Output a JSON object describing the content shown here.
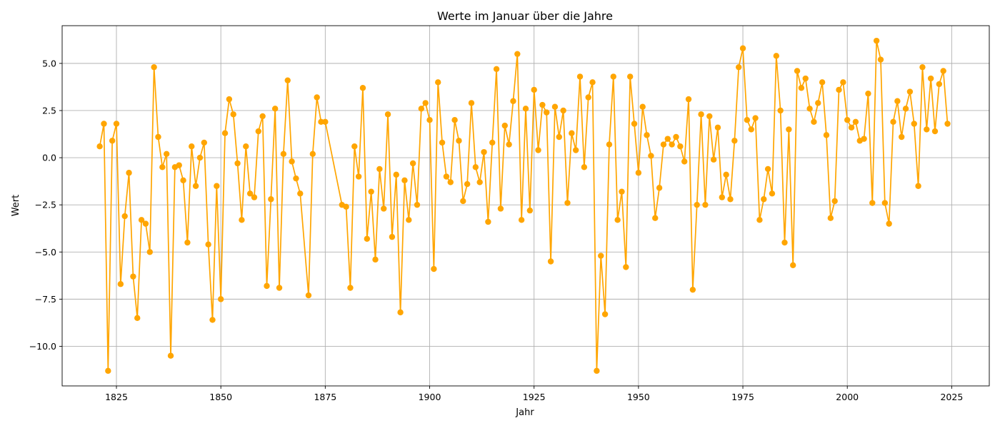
{
  "chart_data": {
    "type": "line",
    "title": "Werte im Januar über die Jahre",
    "xlabel": "Jahr",
    "ylabel": "Wert",
    "xlim": [
      1812,
      2034
    ],
    "ylim": [
      -12.1,
      7.0
    ],
    "xticks": [
      1825,
      1850,
      1875,
      1900,
      1925,
      1950,
      1975,
      2000,
      2025
    ],
    "yticks": [
      -10.0,
      -7.5,
      -5.0,
      -2.5,
      0.0,
      2.5,
      5.0
    ],
    "ytick_labels": [
      "−10.0",
      "−7.5",
      "−5.0",
      "−2.5",
      "0.0",
      "2.5",
      "5.0"
    ],
    "grid": true,
    "color": "#FFA500",
    "series": [
      {
        "x": [
          1821,
          1822,
          1823,
          1824,
          1825,
          1826,
          1827,
          1828,
          1829,
          1830,
          1831,
          1832,
          1833,
          1834,
          1835,
          1836,
          1837,
          1838,
          1839,
          1840,
          1841,
          1842,
          1843,
          1844,
          1845,
          1846,
          1847,
          1848,
          1849,
          1850,
          1851,
          1852,
          1853,
          1854,
          1855,
          1856,
          1857,
          1858,
          1859,
          1860,
          1861,
          1862,
          1863,
          1864,
          1865,
          1866,
          1867,
          1868,
          1869,
          1871,
          1872,
          1873,
          1874,
          1875,
          1879,
          1880,
          1881,
          1882,
          1883,
          1884,
          1885,
          1886,
          1887,
          1888,
          1889,
          1890,
          1891,
          1892,
          1893,
          1894,
          1895,
          1896,
          1897,
          1898,
          1899,
          1900,
          1901,
          1902,
          1903,
          1904,
          1905,
          1906,
          1907,
          1908,
          1909,
          1910,
          1911,
          1912,
          1913,
          1914,
          1915,
          1916,
          1917,
          1918,
          1919,
          1920,
          1921,
          1922,
          1923,
          1924,
          1925,
          1926,
          1927,
          1928,
          1929,
          1930,
          1931,
          1932,
          1933,
          1934,
          1935,
          1936,
          1937,
          1938,
          1939,
          1940,
          1941,
          1942,
          1943,
          1944,
          1945,
          1946,
          1947,
          1948,
          1949,
          1950,
          1951,
          1952,
          1953,
          1954,
          1955,
          1956,
          1957,
          1958,
          1959,
          1960,
          1961,
          1962,
          1963,
          1964,
          1965,
          1966,
          1967,
          1968,
          1969,
          1970,
          1971,
          1972,
          1973,
          1974,
          1975,
          1976,
          1977,
          1978,
          1979,
          1980,
          1981,
          1982,
          1983,
          1984,
          1985,
          1986,
          1987,
          1988,
          1989,
          1990,
          1991,
          1992,
          1993,
          1994,
          1995,
          1996,
          1997,
          1998,
          1999,
          2000,
          2001,
          2002,
          2003,
          2004,
          2005,
          2006,
          2007,
          2008,
          2009,
          2010,
          2011,
          2012,
          2013,
          2014,
          2015,
          2016,
          2017,
          2018,
          2019,
          2020,
          2021,
          2022,
          2023,
          2024
        ],
        "y": [
          0.6,
          1.8,
          -11.3,
          0.9,
          1.8,
          -6.7,
          -3.1,
          -0.8,
          -6.3,
          -8.5,
          -3.3,
          -3.5,
          -5.0,
          4.8,
          1.1,
          -0.5,
          0.2,
          -10.5,
          -0.5,
          -0.4,
          -1.2,
          -4.5,
          0.6,
          -1.5,
          0.0,
          0.8,
          -4.6,
          -8.6,
          -1.5,
          -7.5,
          1.3,
          3.1,
          2.3,
          -0.3,
          -3.3,
          0.6,
          -1.9,
          -2.1,
          1.4,
          2.2,
          -6.8,
          -2.2,
          2.6,
          -6.9,
          0.2,
          4.1,
          -0.2,
          -1.1,
          -1.9,
          -7.3,
          0.2,
          3.2,
          1.9,
          1.9,
          -2.5,
          -2.6,
          -6.9,
          0.6,
          -1.0,
          3.7,
          -4.3,
          -1.8,
          -5.4,
          -0.6,
          -2.7,
          2.3,
          -4.2,
          -0.9,
          -8.2,
          -1.2,
          -3.3,
          -0.3,
          -2.5,
          2.6,
          2.9,
          2.0,
          -5.9,
          4.0,
          0.8,
          -1.0,
          -1.3,
          2.0,
          0.9,
          -2.3,
          -1.4,
          2.9,
          -0.5,
          -1.3,
          0.3,
          -3.4,
          0.8,
          4.7,
          -2.7,
          1.7,
          0.7,
          3.0,
          5.5,
          -3.3,
          2.6,
          -2.8,
          3.6,
          0.4,
          2.8,
          2.4,
          -5.5,
          2.7,
          1.1,
          2.5,
          -2.4,
          1.3,
          0.4,
          4.3,
          -0.5,
          3.2,
          4.0,
          -11.3,
          -5.2,
          -8.3,
          0.7,
          4.3,
          -3.3,
          -1.8,
          -5.8,
          4.3,
          1.8,
          -0.8,
          2.7,
          1.2,
          0.1,
          -3.2,
          -1.6,
          0.7,
          1.0,
          0.7,
          1.1,
          0.6,
          -0.2,
          3.1,
          -7.0,
          -2.5,
          2.3,
          -2.5,
          2.2,
          -0.1,
          1.6,
          -2.1,
          -0.9,
          -2.2,
          0.9,
          4.8,
          5.8,
          2.0,
          1.5,
          2.1,
          -3.3,
          -2.2,
          -0.6,
          -1.9,
          5.4,
          2.5,
          -4.5,
          1.5,
          -5.7,
          4.6,
          3.7,
          4.2,
          2.6,
          1.9,
          2.9,
          4.0,
          1.2,
          -3.2,
          -2.3,
          3.6,
          4.0,
          2.0,
          1.6,
          1.9,
          0.9,
          1.0,
          3.4,
          -2.4,
          6.2,
          5.2,
          -2.4,
          -3.5,
          1.9,
          3.0,
          1.1,
          2.6,
          3.5,
          1.8,
          -1.5,
          4.8,
          1.5,
          4.2,
          1.4,
          3.9,
          4.6,
          1.8
        ]
      }
    ]
  }
}
